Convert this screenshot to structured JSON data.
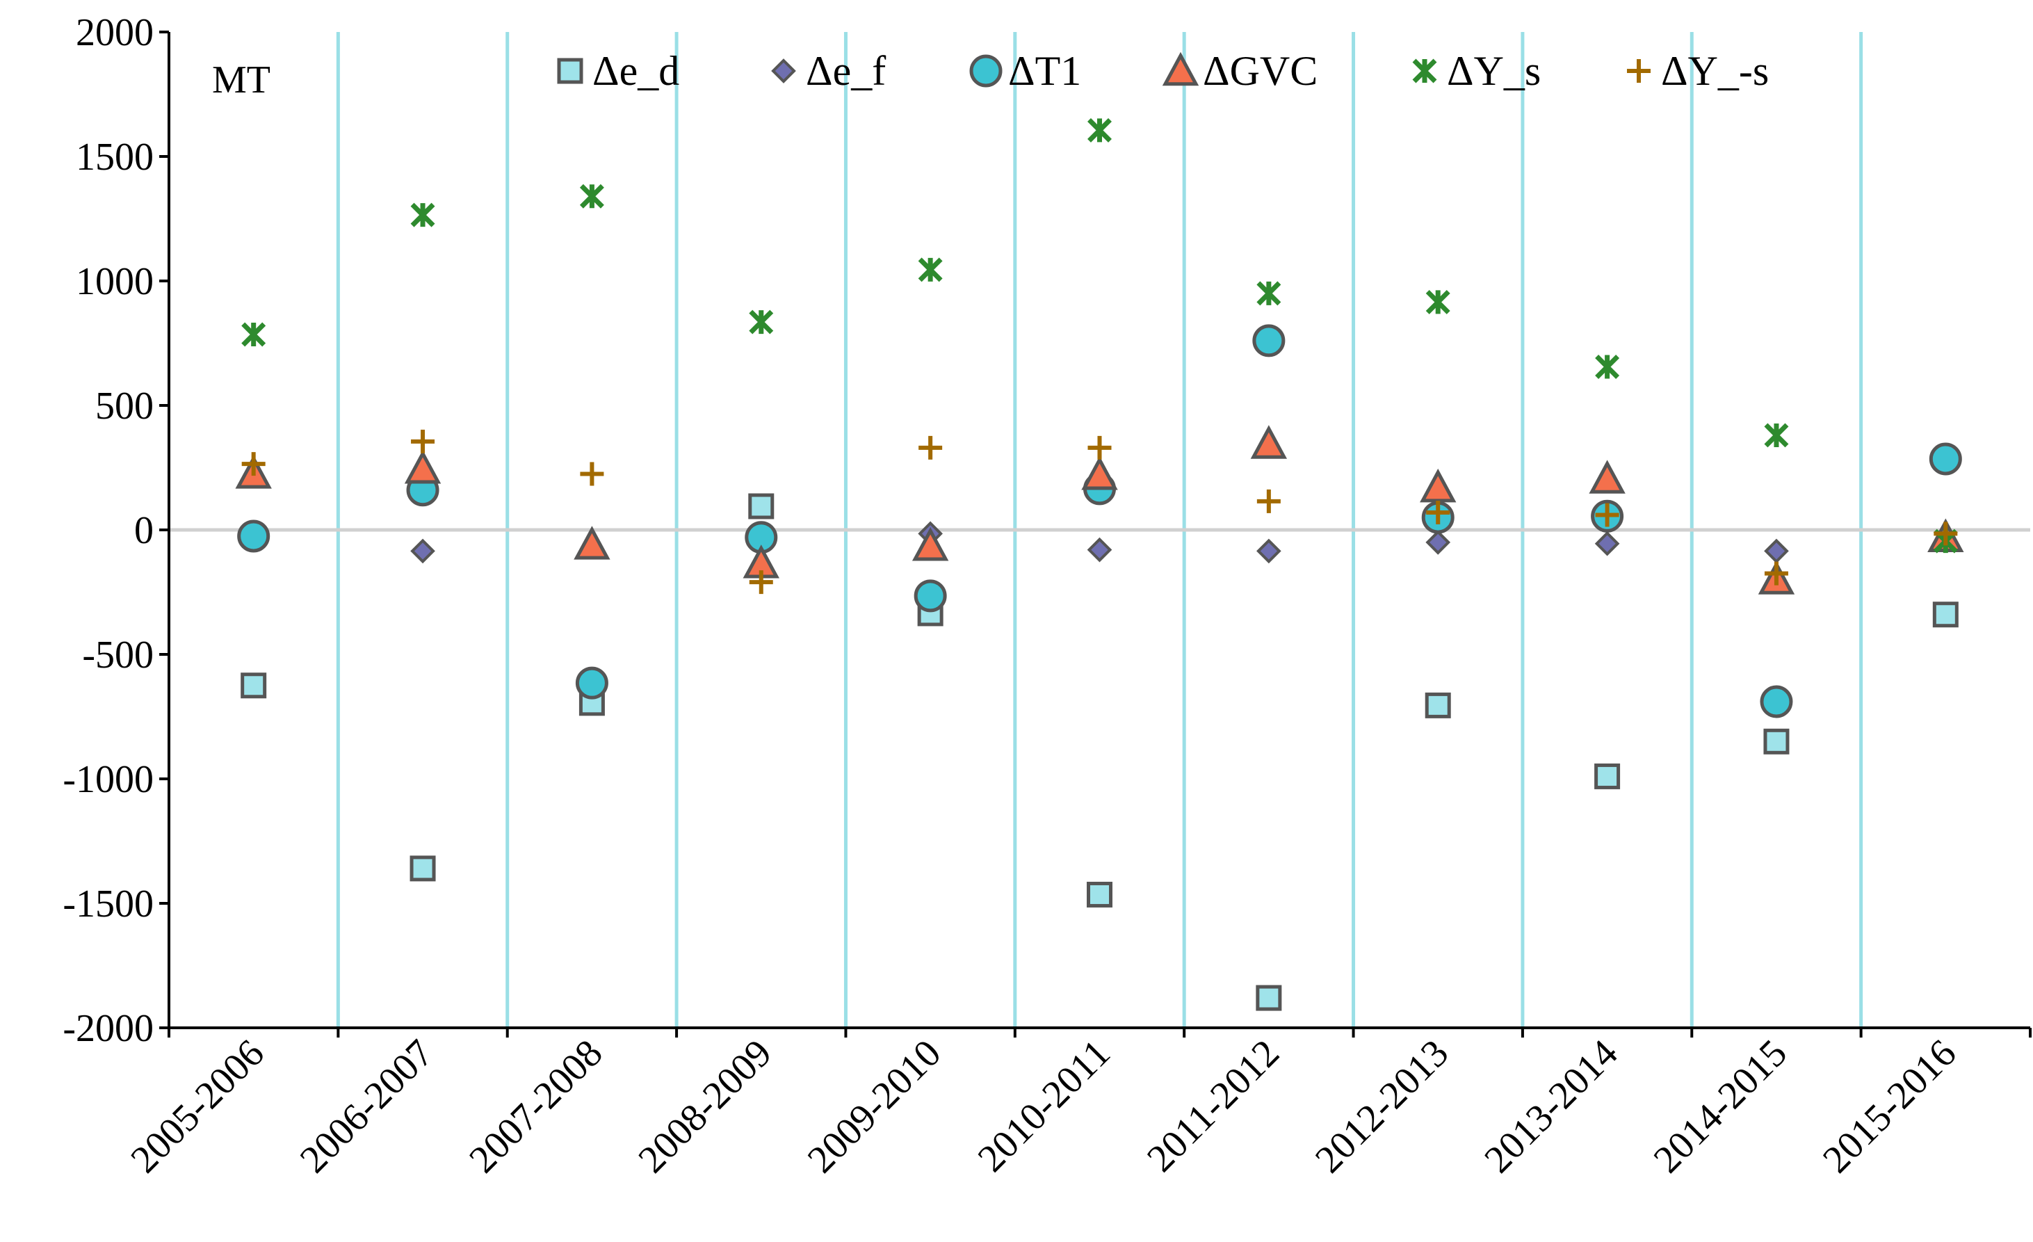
{
  "chart_data": {
    "type": "scatter",
    "title": "",
    "xlabel": "",
    "ylabel": "",
    "panel_label": "MT",
    "categories": [
      "2005-2006",
      "2006-2007",
      "2007-2008",
      "2008-2009",
      "2009-2010",
      "2010-2011",
      "2011-2012",
      "2012-2013",
      "2013-2014",
      "2014-2015",
      "2015-2016"
    ],
    "ylim": [
      -2000,
      2000
    ],
    "yticks": [
      "2000",
      "1500",
      "1000",
      "500",
      "0",
      "-500",
      "-1000",
      "-1500",
      "-2000"
    ],
    "legend_position": "top",
    "series": [
      {
        "name": "Δe_d",
        "marker": "square",
        "color": "#9fe3ea",
        "values": [
          -625,
          -1360,
          -695,
          95,
          -335,
          -1465,
          -1880,
          -705,
          -990,
          -850,
          -340
        ]
      },
      {
        "name": "Δe_f",
        "marker": "diamond",
        "color": "#6f6fb0",
        "values": [
          null,
          -85,
          null,
          null,
          -15,
          -80,
          -85,
          -50,
          -55,
          -85,
          null
        ]
      },
      {
        "name": "ΔT1",
        "marker": "circle",
        "color": "#3cc3d2",
        "values": [
          -25,
          160,
          -615,
          -30,
          -265,
          165,
          760,
          50,
          55,
          -690,
          285
        ]
      },
      {
        "name": "ΔGVC",
        "marker": "triangle",
        "color": "#f4704c",
        "values": [
          225,
          245,
          -60,
          -135,
          -65,
          220,
          345,
          170,
          205,
          -200,
          -30
        ]
      },
      {
        "name": "ΔY_s",
        "marker": "star",
        "color": "#2e8a2e",
        "values": [
          785,
          1265,
          1340,
          835,
          1045,
          1605,
          950,
          915,
          655,
          380,
          -45
        ]
      },
      {
        "name": "ΔY_-s",
        "marker": "plus",
        "color": "#a26a00",
        "values": [
          265,
          355,
          225,
          -210,
          330,
          330,
          115,
          70,
          60,
          -175,
          -15
        ]
      }
    ]
  }
}
